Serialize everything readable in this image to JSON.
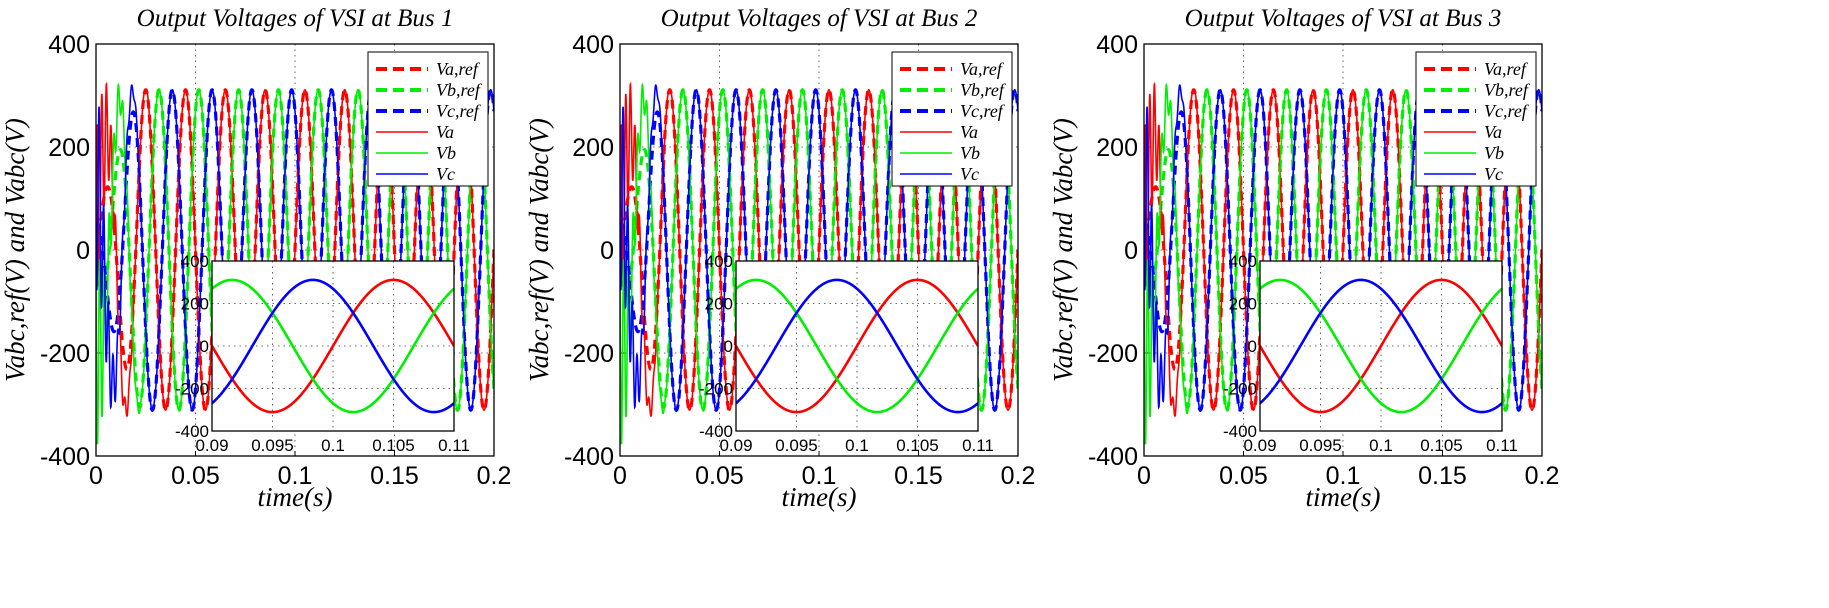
{
  "colors": {
    "a": "#ff0000",
    "b": "#00ee00",
    "c": "#0000ff"
  },
  "chart_data": [
    {
      "type": "line",
      "title": "Output Voltages of VSI at Bus 1",
      "xlabel": "time(s)",
      "ylabel": "Vabc,ref(V) and Vabc(V)",
      "xlim": [
        0,
        0.2
      ],
      "ylim": [
        -400,
        400
      ],
      "xticks": [
        "0",
        "0.05",
        "0.1",
        "0.15",
        "0.2"
      ],
      "yticks": [
        "-400",
        "-200",
        "0",
        "200",
        "400"
      ],
      "grid": true,
      "legend_position": "top-right",
      "frequency_hz": 50,
      "amplitude_v": 311,
      "phase_deg": {
        "a": 0,
        "b": -120,
        "c": 120
      },
      "series": [
        {
          "name": "Va,ref",
          "phase": "a",
          "style": "dashed"
        },
        {
          "name": "Vb,ref",
          "phase": "b",
          "style": "dashed"
        },
        {
          "name": "Vc,ref",
          "phase": "c",
          "style": "dashed"
        },
        {
          "name": "Va",
          "phase": "a",
          "style": "solid"
        },
        {
          "name": "Vb",
          "phase": "b",
          "style": "solid"
        },
        {
          "name": "Vc",
          "phase": "c",
          "style": "solid"
        }
      ],
      "inset": {
        "xlim": [
          0.09,
          0.11
        ],
        "ylim": [
          -400,
          400
        ],
        "xticks": [
          "0.09",
          "0.095",
          "0.1",
          "0.105",
          "0.11"
        ],
        "yticks": [
          "-400",
          "-200",
          "0",
          "200",
          "400"
        ],
        "xtick_values": [
          0.09,
          0.095,
          0.1,
          0.105,
          0.11
        ]
      }
    },
    {
      "type": "line",
      "title": "Output Voltages of VSI at Bus 2",
      "xlabel": "time(s)",
      "ylabel": "Vabc,ref(V) and Vabc(V)",
      "xlim": [
        0,
        0.2
      ],
      "ylim": [
        -400,
        400
      ],
      "xticks": [
        "0",
        "0.05",
        "0.1",
        "0.15",
        "0.2"
      ],
      "yticks": [
        "-400",
        "-200",
        "0",
        "200",
        "400"
      ],
      "grid": true,
      "legend_position": "top-right",
      "frequency_hz": 50,
      "amplitude_v": 311,
      "phase_deg": {
        "a": 0,
        "b": -120,
        "c": 120
      },
      "series": [
        {
          "name": "Va,ref",
          "phase": "a",
          "style": "dashed"
        },
        {
          "name": "Vb,ref",
          "phase": "b",
          "style": "dashed"
        },
        {
          "name": "Vc,ref",
          "phase": "c",
          "style": "dashed"
        },
        {
          "name": "Va",
          "phase": "a",
          "style": "solid"
        },
        {
          "name": "Vb",
          "phase": "b",
          "style": "solid"
        },
        {
          "name": "Vc",
          "phase": "c",
          "style": "solid"
        }
      ],
      "inset": {
        "xlim": [
          0.09,
          0.11
        ],
        "ylim": [
          -400,
          400
        ],
        "xticks": [
          "0.09",
          "0.095",
          "0.1",
          "0.105",
          "0.11"
        ],
        "yticks": [
          "-400",
          "-200",
          "0",
          "200",
          "400"
        ],
        "xtick_values": [
          0.09,
          0.095,
          0.1,
          0.105,
          0.11
        ]
      }
    },
    {
      "type": "line",
      "title": "Output Voltages of VSI at Bus 3",
      "xlabel": "time(s)",
      "ylabel": "Vabc,ref(V) and Vabc(V)",
      "xlim": [
        0,
        0.2
      ],
      "ylim": [
        -400,
        400
      ],
      "xticks": [
        "0",
        "0.05",
        "0.1",
        "0.15",
        "0.2"
      ],
      "yticks": [
        "-400",
        "-200",
        "0",
        "200",
        "400"
      ],
      "grid": true,
      "legend_position": "top-right",
      "frequency_hz": 50,
      "amplitude_v": 311,
      "phase_deg": {
        "a": 0,
        "b": -120,
        "c": 120
      },
      "series": [
        {
          "name": "Va,ref",
          "phase": "a",
          "style": "dashed"
        },
        {
          "name": "Vb,ref",
          "phase": "b",
          "style": "dashed"
        },
        {
          "name": "Vc,ref",
          "phase": "c",
          "style": "dashed"
        },
        {
          "name": "Va",
          "phase": "a",
          "style": "solid"
        },
        {
          "name": "Vb",
          "phase": "b",
          "style": "solid"
        },
        {
          "name": "Vc",
          "phase": "c",
          "style": "solid"
        }
      ],
      "inset": {
        "xlim": [
          0.09,
          0.11
        ],
        "ylim": [
          -400,
          400
        ],
        "xticks": [
          "0.09",
          "0.095",
          "0.1",
          "0.105",
          "0.11"
        ],
        "yticks": [
          "-400",
          "-200",
          "0",
          "200",
          "400"
        ],
        "xtick_values": [
          0.09,
          0.095,
          0.1,
          0.105,
          0.11
        ]
      }
    }
  ]
}
